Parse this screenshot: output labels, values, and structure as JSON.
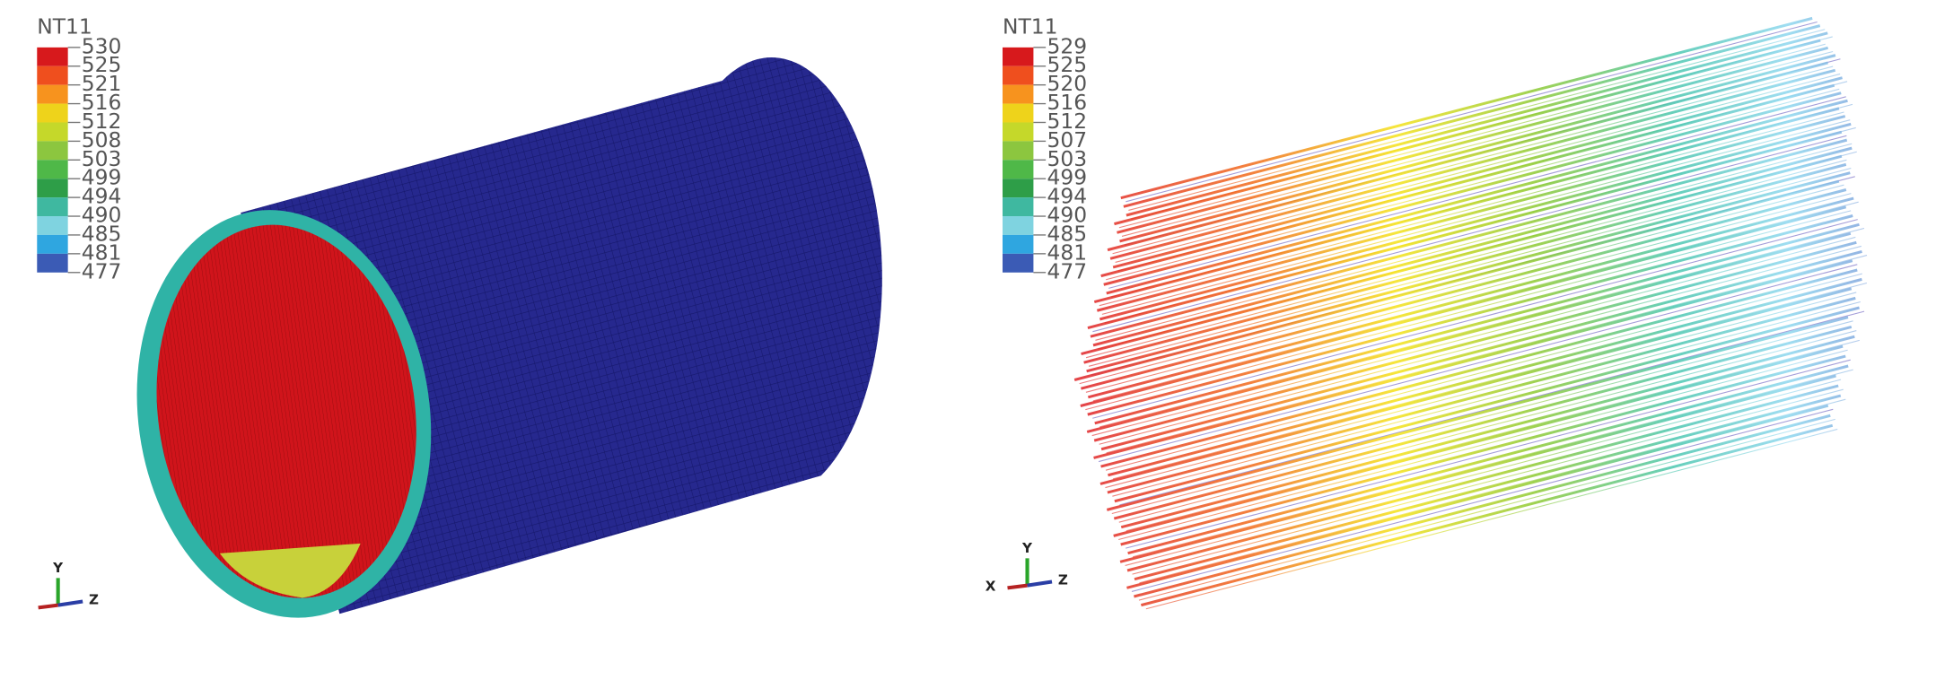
{
  "left_panel": {
    "legend": {
      "title": "NT11",
      "labels": [
        530,
        525,
        521,
        516,
        512,
        508,
        503,
        499,
        494,
        490,
        485,
        481,
        477
      ]
    },
    "triad": {
      "y": "Y",
      "z": "Z"
    }
  },
  "right_panel": {
    "legend": {
      "title": "NT11",
      "labels": [
        529,
        525,
        520,
        516,
        512,
        507,
        503,
        499,
        494,
        490,
        485,
        481,
        477
      ]
    },
    "triad": {
      "x": "X",
      "y": "Y",
      "z": "Z"
    }
  }
}
